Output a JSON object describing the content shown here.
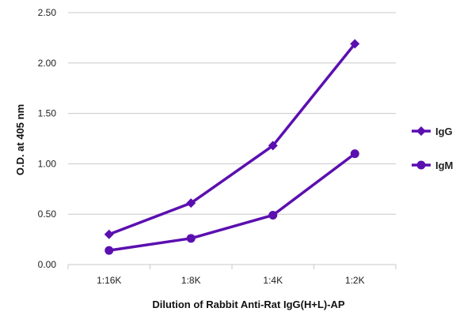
{
  "chart_data": {
    "type": "line",
    "title": "",
    "xlabel": "Dilution of Rabbit Anti-Rat IgG(H+L)-AP",
    "ylabel": "O.D. at 405 nm",
    "categories": [
      "1:16K",
      "1:8K",
      "1:4K",
      "1:2K"
    ],
    "yticks": [
      "0.00",
      "0.50",
      "1.00",
      "1.50",
      "2.00",
      "2.50"
    ],
    "ylim": [
      0,
      2.5
    ],
    "grid": "horizontal",
    "legend_position": "right",
    "series": [
      {
        "name": "IgG",
        "marker": "diamond",
        "color": "#5b0fb0",
        "values": [
          0.3,
          0.61,
          1.18,
          2.19
        ]
      },
      {
        "name": "IgM",
        "marker": "circle",
        "color": "#5b0fb0",
        "values": [
          0.14,
          0.26,
          0.49,
          1.1
        ]
      }
    ]
  }
}
